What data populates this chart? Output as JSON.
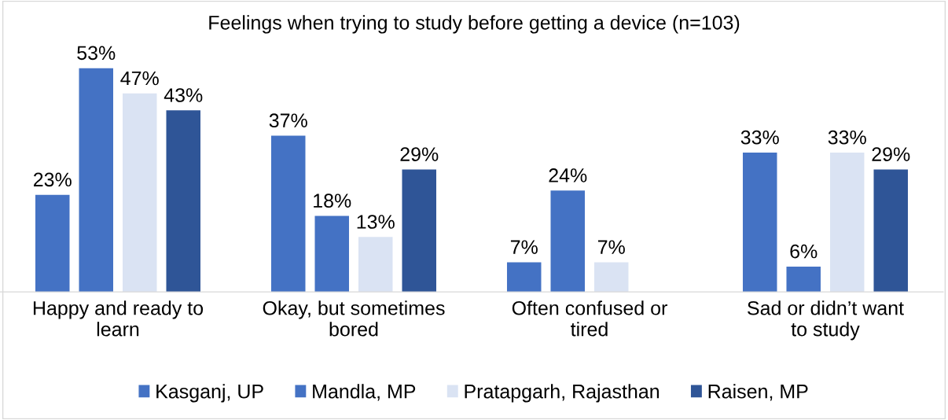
{
  "chart_data": {
    "type": "bar",
    "title": "Feelings when trying to study before getting a device (n=103)",
    "categories": [
      "Happy and ready to learn",
      "Okay, but sometimes bored",
      "Often confused or tired",
      "Sad or didn’t want to study"
    ],
    "series": [
      {
        "name": "Kasganj, UP",
        "color": "#4472c4",
        "values": [
          23,
          37,
          7,
          33
        ],
        "value_labels": [
          "23%",
          "37%",
          "7%",
          "33%"
        ]
      },
      {
        "name": "Mandla, MP",
        "color": "#4472c4",
        "values": [
          53,
          18,
          24,
          6
        ],
        "value_labels": [
          "53%",
          "18%",
          "24%",
          "6%"
        ]
      },
      {
        "name": "Pratapgarh, Rajasthan",
        "color": "#dae3f3",
        "values": [
          47,
          13,
          7,
          33
        ],
        "value_labels": [
          "47%",
          "13%",
          "7%",
          "33%"
        ]
      },
      {
        "name": "Raisen, MP",
        "color": "#2f5597",
        "values": [
          43,
          29,
          null,
          29
        ],
        "value_labels": [
          "43%",
          "29%",
          null,
          "29%"
        ]
      }
    ],
    "grid": false,
    "legend": "bottom"
  }
}
